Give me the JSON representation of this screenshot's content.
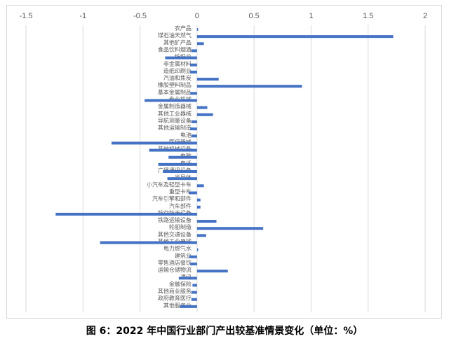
{
  "chart_data": {
    "type": "bar",
    "orientation": "horizontal",
    "title": "图 6：2022 年中国行业部门产出较基准情景变化（单位：%）",
    "xlim": [
      -1.5,
      2
    ],
    "xticks": [
      "-1.5",
      "-1",
      "-0.5",
      "0",
      "0.5",
      "1",
      "1.5",
      "2"
    ],
    "grid": true,
    "color": "#4472C4",
    "categories": [
      "农产品",
      "煤石油天然气",
      "其他矿产品",
      "食品饮料烟酒",
      "纺织业",
      "非金属材料",
      "造纸印刷业",
      "汽油和焦炭",
      "橡胶塑料制品",
      "基本金属制品",
      "专业机械",
      "金属制造器械",
      "其他工业器械",
      "导航测量设备",
      "其他运输制造",
      "电池",
      "医疗器械",
      "其他机械设备",
      "电脑",
      "电话",
      "广播通讯设备",
      "半导体",
      "小汽车及轻型卡车",
      "重型卡车",
      "汽车引擎和部件",
      "汽车部件",
      "航空航天设备",
      "铁路运输设备",
      "轮船制造",
      "其他交通设备",
      "其他工业器械",
      "电力燃气水",
      "建筑业",
      "零售酒店餐饮",
      "运输仓储物流",
      "通讯",
      "金融保险",
      "其他商业服务",
      "政府教育医疗",
      "其他服务业"
    ],
    "values": [
      0.005,
      1.72,
      0.06,
      -0.05,
      -0.28,
      -0.06,
      -0.06,
      0.19,
      0.92,
      -0.06,
      -0.46,
      0.09,
      0.14,
      -0.05,
      -0.06,
      -0.05,
      -0.75,
      -0.42,
      -0.25,
      -0.34,
      -0.3,
      -0.26,
      0.06,
      -0.07,
      0.03,
      0.03,
      -1.24,
      0.17,
      0.58,
      0.08,
      -0.85,
      0.01,
      -0.07,
      -0.06,
      0.27,
      -0.16,
      -0.04,
      -0.05,
      -0.05,
      -0.15
    ]
  }
}
